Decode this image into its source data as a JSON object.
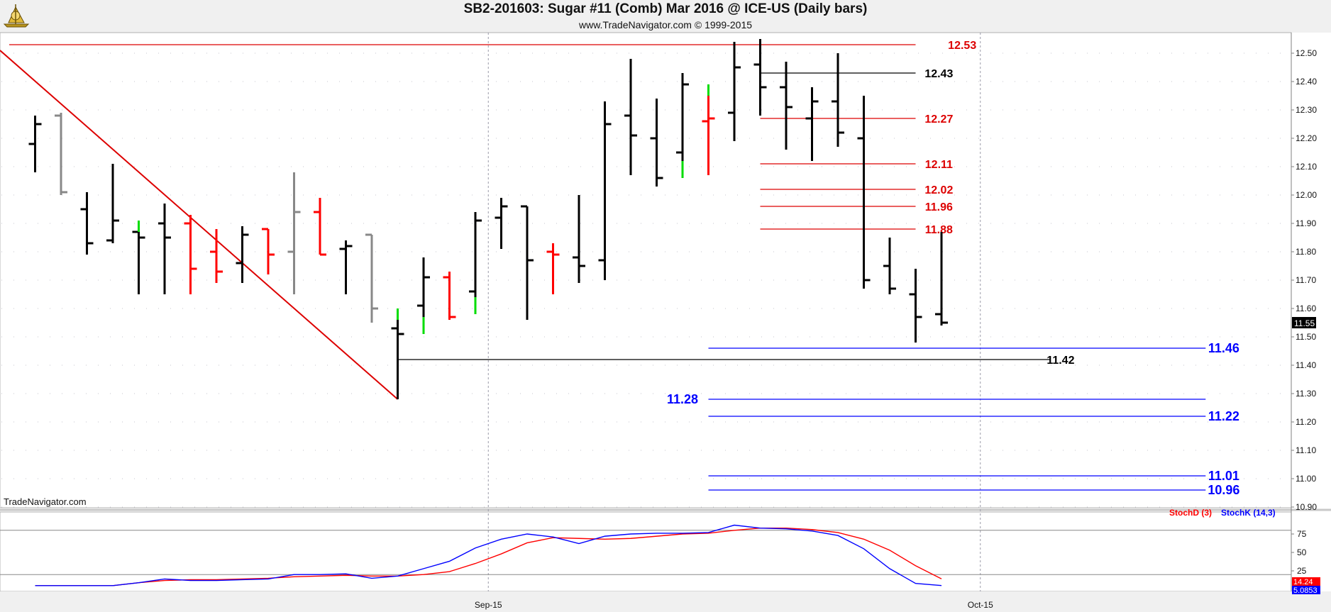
{
  "header": {
    "title": "SB2-201603:  Sugar #11 (Comb) Mar 2016 @ ICE-US  (Daily bars)",
    "subtitle": "www.TradeNavigator.com © 1999-2015"
  },
  "watermark": "TradeNavigator.com",
  "colors": {
    "up": "#000000",
    "down": "#ff0000",
    "up_bull": "#00dd00",
    "gray": "#888888",
    "stochD": "#ff0000",
    "stochK": "#0000ff",
    "hline_red": "#dd0000",
    "hline_blue": "#0000ff",
    "hline_black": "#000000"
  },
  "chart_data": [
    {
      "type": "ohlc",
      "title": "SB2-201603:  Sugar #11 (Comb) Mar 2016 @ ICE-US  (Daily bars)",
      "x_ticks": [
        {
          "label": "Sep-15",
          "index": 18.5
        },
        {
          "label": "Oct-15",
          "index": 37.5
        }
      ],
      "y_ticks": [
        "12.50",
        "12.40",
        "12.30",
        "12.20",
        "12.10",
        "12.00",
        "11.90",
        "11.80",
        "11.70",
        "11.60",
        "11.50",
        "11.40",
        "11.30",
        "11.20",
        "11.10",
        "11.00",
        "10.90"
      ],
      "y_range": [
        10.88,
        12.58
      ],
      "last_price": "11.55",
      "bars": [
        {
          "i": 1,
          "o": 12.18,
          "h": 12.28,
          "l": 12.08,
          "c": 12.25,
          "color": "up"
        },
        {
          "i": 2,
          "o": 12.28,
          "h": 12.29,
          "l": 12.0,
          "c": 12.01,
          "color": "gray"
        },
        {
          "i": 3,
          "o": 11.95,
          "h": 12.01,
          "l": 11.79,
          "c": 11.83,
          "color": "up"
        },
        {
          "i": 4,
          "o": 11.84,
          "h": 12.11,
          "l": 11.83,
          "c": 11.91,
          "color": "up"
        },
        {
          "i": 5,
          "o": 11.87,
          "h": 11.91,
          "l": 11.65,
          "c": 11.85,
          "color": "up",
          "bull_top": true
        },
        {
          "i": 6,
          "o": 11.9,
          "h": 11.97,
          "l": 11.65,
          "c": 11.85,
          "color": "up"
        },
        {
          "i": 7,
          "o": 11.9,
          "h": 11.93,
          "l": 11.65,
          "c": 11.74,
          "color": "down"
        },
        {
          "i": 8,
          "o": 11.8,
          "h": 11.88,
          "l": 11.69,
          "c": 11.73,
          "color": "down"
        },
        {
          "i": 9,
          "o": 11.76,
          "h": 11.89,
          "l": 11.69,
          "c": 11.86,
          "color": "up"
        },
        {
          "i": 10,
          "o": 11.88,
          "h": 11.88,
          "l": 11.72,
          "c": 11.79,
          "color": "down"
        },
        {
          "i": 11,
          "o": 11.8,
          "h": 12.08,
          "l": 11.65,
          "c": 11.94,
          "color": "gray"
        },
        {
          "i": 12,
          "o": 11.94,
          "h": 11.99,
          "l": 11.79,
          "c": 11.79,
          "color": "down"
        },
        {
          "i": 13,
          "o": 11.81,
          "h": 11.84,
          "l": 11.65,
          "c": 11.82,
          "color": "up"
        },
        {
          "i": 14,
          "o": 11.86,
          "h": 11.86,
          "l": 11.55,
          "c": 11.6,
          "color": "gray"
        },
        {
          "i": 15,
          "o": 11.53,
          "h": 11.6,
          "l": 11.28,
          "c": 11.51,
          "color": "up",
          "bull_top": true
        },
        {
          "i": 16,
          "o": 11.61,
          "h": 11.78,
          "l": 11.51,
          "c": 11.71,
          "color": "up",
          "bull_bottom": true
        },
        {
          "i": 17,
          "o": 11.71,
          "h": 11.73,
          "l": 11.56,
          "c": 11.57,
          "color": "down"
        },
        {
          "i": 18,
          "o": 11.66,
          "h": 11.94,
          "l": 11.58,
          "c": 11.91,
          "color": "up",
          "bull_bottom": true
        },
        {
          "i": 19,
          "o": 11.92,
          "h": 11.99,
          "l": 11.81,
          "c": 11.96,
          "color": "up"
        },
        {
          "i": 20,
          "o": 11.96,
          "h": 11.96,
          "l": 11.56,
          "c": 11.77,
          "color": "up"
        },
        {
          "i": 21,
          "o": 11.8,
          "h": 11.83,
          "l": 11.65,
          "c": 11.79,
          "color": "down"
        },
        {
          "i": 22,
          "o": 11.78,
          "h": 12.0,
          "l": 11.69,
          "c": 11.75,
          "color": "up"
        },
        {
          "i": 23,
          "o": 11.77,
          "h": 12.33,
          "l": 11.7,
          "c": 12.25,
          "color": "up"
        },
        {
          "i": 24,
          "o": 12.28,
          "h": 12.48,
          "l": 12.07,
          "c": 12.21,
          "color": "up"
        },
        {
          "i": 25,
          "o": 12.2,
          "h": 12.34,
          "l": 12.03,
          "c": 12.06,
          "color": "up"
        },
        {
          "i": 26,
          "o": 12.15,
          "h": 12.43,
          "l": 12.06,
          "c": 12.39,
          "color": "up",
          "bull_bottom": true
        },
        {
          "i": 27,
          "o": 12.26,
          "h": 12.39,
          "l": 12.07,
          "c": 12.27,
          "color": "down",
          "bull_top": true
        },
        {
          "i": 28,
          "o": 12.29,
          "h": 12.54,
          "l": 12.19,
          "c": 12.45,
          "color": "up"
        },
        {
          "i": 29,
          "o": 12.46,
          "h": 12.55,
          "l": 12.28,
          "c": 12.38,
          "color": "up"
        },
        {
          "i": 30,
          "o": 12.38,
          "h": 12.47,
          "l": 12.16,
          "c": 12.31,
          "color": "up"
        },
        {
          "i": 31,
          "o": 12.27,
          "h": 12.38,
          "l": 12.12,
          "c": 12.33,
          "color": "up"
        },
        {
          "i": 32,
          "o": 12.33,
          "h": 12.5,
          "l": 12.17,
          "c": 12.22,
          "color": "up"
        },
        {
          "i": 33,
          "o": 12.2,
          "h": 12.35,
          "l": 11.67,
          "c": 11.7,
          "color": "up"
        },
        {
          "i": 34,
          "o": 11.75,
          "h": 11.85,
          "l": 11.65,
          "c": 11.67,
          "color": "up"
        },
        {
          "i": 35,
          "o": 11.65,
          "h": 11.74,
          "l": 11.48,
          "c": 11.57,
          "color": "up"
        },
        {
          "i": 36,
          "o": 11.58,
          "h": 11.87,
          "l": 11.54,
          "c": 11.55,
          "color": "up"
        }
      ],
      "trendline": {
        "from": {
          "i": 0,
          "v": 12.51
        },
        "to": {
          "i": 15,
          "v": 11.28
        },
        "color": "#dd0000"
      },
      "levels": [
        {
          "value": 12.53,
          "label": "12.53",
          "from_i": 0,
          "to_i": 35,
          "label_i": 36.8,
          "color": "hline_red"
        },
        {
          "value": 12.43,
          "label": "12.43",
          "from_i": 29,
          "to_i": 35,
          "label_i": 35.9,
          "color": "hline_black"
        },
        {
          "value": 12.27,
          "label": "12.27",
          "from_i": 29,
          "to_i": 35,
          "label_i": 35.9,
          "color": "hline_red"
        },
        {
          "value": 12.11,
          "label": "12.11",
          "from_i": 29,
          "to_i": 35,
          "label_i": 35.9,
          "color": "hline_red"
        },
        {
          "value": 12.02,
          "label": "12.02",
          "from_i": 29,
          "to_i": 35,
          "label_i": 35.9,
          "color": "hline_red"
        },
        {
          "value": 11.96,
          "label": "11.96",
          "from_i": 29,
          "to_i": 35,
          "label_i": 35.9,
          "color": "hline_red"
        },
        {
          "value": 11.88,
          "label": "11.88",
          "from_i": 29,
          "to_i": 35,
          "label_i": 35.9,
          "color": "hline_red"
        },
        {
          "value": 11.46,
          "label": "11.46",
          "from_i": 27,
          "to_i": 46.2,
          "label_i": 46.9,
          "color": "hline_blue"
        },
        {
          "value": 11.42,
          "label": "11.42",
          "from_i": 15,
          "to_i": 40.2,
          "label_i": 40.6,
          "color": "hline_black"
        },
        {
          "value": 11.28,
          "label": "11.28",
          "from_i": 27,
          "to_i": 46.2,
          "label_i": 26.0,
          "color": "hline_blue"
        },
        {
          "value": 11.22,
          "label": "11.22",
          "from_i": 27,
          "to_i": 46.2,
          "label_i": 46.9,
          "color": "hline_blue"
        },
        {
          "value": 11.01,
          "label": "11.01",
          "from_i": 27,
          "to_i": 46.2,
          "label_i": 46.9,
          "color": "hline_blue"
        },
        {
          "value": 10.96,
          "label": "10.96",
          "from_i": 27,
          "to_i": 46.2,
          "label_i": 46.9,
          "color": "hline_blue"
        }
      ]
    },
    {
      "type": "line",
      "title": "",
      "legend": [
        "StochD (3)",
        "StochK (14,3)"
      ],
      "y_ticks": [
        "75",
        "50",
        "25"
      ],
      "y_range": [
        0,
        100
      ],
      "reference_lines": [
        80,
        20
      ],
      "last_values": {
        "StochD (3)": "14.24",
        "StochK (14,3)": "5.0853"
      },
      "series": [
        {
          "name": "StochD (3)",
          "color": "stochD",
          "x": [
            1,
            2,
            3,
            4,
            5,
            6,
            7,
            8,
            9,
            10,
            11,
            12,
            13,
            14,
            15,
            16,
            17,
            18,
            19,
            20,
            21,
            22,
            23,
            24,
            25,
            26,
            27,
            28,
            29,
            30,
            31,
            32,
            33,
            34,
            35,
            36
          ],
          "values": [
            5,
            5,
            5,
            5,
            9,
            12,
            13,
            13,
            14,
            15,
            17,
            18,
            19,
            18,
            18,
            20,
            24,
            35,
            48,
            63,
            70,
            69,
            68,
            69,
            72,
            75,
            76,
            80,
            83,
            83,
            81,
            77,
            68,
            53,
            32,
            14.24
          ]
        },
        {
          "name": "StochK (14,3)",
          "color": "stochK",
          "x": [
            1,
            2,
            3,
            4,
            5,
            6,
            7,
            8,
            9,
            10,
            11,
            12,
            13,
            14,
            15,
            16,
            17,
            18,
            19,
            20,
            21,
            22,
            23,
            24,
            25,
            26,
            27,
            28,
            29,
            30,
            31,
            32,
            33,
            34,
            35,
            36
          ],
          "values": [
            5,
            5,
            5,
            5,
            9,
            14,
            12,
            12,
            13,
            14,
            20,
            20,
            21,
            15,
            18,
            28,
            38,
            56,
            68,
            75,
            71,
            62,
            72,
            75,
            76,
            76,
            77,
            87,
            83,
            82,
            79,
            73,
            55,
            28,
            8,
            5.0853
          ]
        }
      ]
    }
  ]
}
